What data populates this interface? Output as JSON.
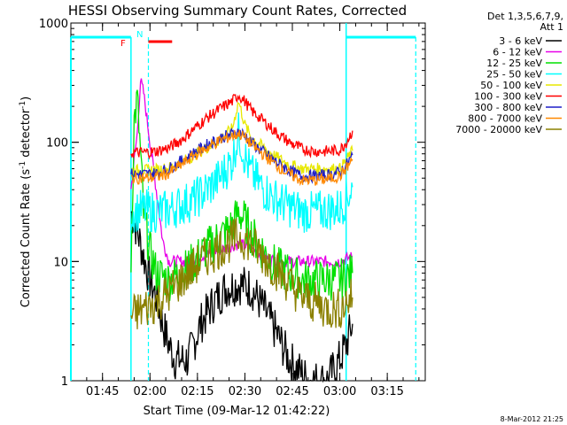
{
  "chart_data": {
    "type": "line",
    "title": "HESSI Observing Summary Count Rates, Corrected",
    "xlabel": "Start Time (09-Mar-12 01:42:22)",
    "ylabel_main": "Corrected Count Rate (s",
    "ylabel_sup1": "-1",
    "ylabel_mid": " detector",
    "ylabel_sup2": "-1",
    "ylabel_end": ")",
    "yscale": "log",
    "ylim": [
      1,
      1000
    ],
    "xlim_minutes": [
      -7,
      105
    ],
    "xticks": [
      {
        "t": 3,
        "label": "01:45"
      },
      {
        "t": 18,
        "label": "02:00"
      },
      {
        "t": 33,
        "label": "02:15"
      },
      {
        "t": 48,
        "label": "02:30"
      },
      {
        "t": 63,
        "label": "02:45"
      },
      {
        "t": 78,
        "label": "03:00"
      },
      {
        "t": 93,
        "label": "03:15"
      }
    ],
    "yticks": [
      {
        "v": 1,
        "label": "1"
      },
      {
        "v": 10,
        "label": "10"
      },
      {
        "v": 100,
        "label": "100"
      },
      {
        "v": 1000,
        "label": "1000"
      }
    ],
    "legend_header": [
      "Det 1,3,5,6,7,9,",
      "Att 1"
    ],
    "series": [
      {
        "name": "3 - 6 keV",
        "color": "#000000",
        "points": [
          [
            12,
            26
          ],
          [
            14,
            18
          ],
          [
            16,
            11
          ],
          [
            18,
            7
          ],
          [
            20,
            5
          ],
          [
            22,
            3
          ],
          [
            24,
            2
          ],
          [
            26,
            1.5
          ],
          [
            30,
            1.5
          ],
          [
            34,
            3
          ],
          [
            38,
            4.5
          ],
          [
            42,
            6
          ],
          [
            46,
            6.5
          ],
          [
            50,
            6
          ],
          [
            54,
            4
          ],
          [
            58,
            2.5
          ],
          [
            62,
            1.5
          ],
          [
            68,
            1
          ],
          [
            74,
            1
          ],
          [
            78,
            1.5
          ],
          [
            80,
            2
          ],
          [
            82,
            3
          ]
        ]
      },
      {
        "name": "6 - 12 keV",
        "color": "#e800e8",
        "points": [
          [
            12,
            40
          ],
          [
            14,
            120
          ],
          [
            15,
            330
          ],
          [
            16,
            260
          ],
          [
            18,
            100
          ],
          [
            20,
            40
          ],
          [
            22,
            15
          ],
          [
            24,
            10
          ],
          [
            26,
            10
          ],
          [
            30,
            10
          ],
          [
            34,
            11
          ],
          [
            38,
            12
          ],
          [
            42,
            13
          ],
          [
            46,
            14
          ],
          [
            50,
            13
          ],
          [
            54,
            11
          ],
          [
            58,
            10
          ],
          [
            62,
            10
          ],
          [
            66,
            10
          ],
          [
            70,
            10
          ],
          [
            74,
            10
          ],
          [
            78,
            10
          ],
          [
            82,
            11
          ]
        ]
      },
      {
        "name": "12 - 25 keV",
        "color": "#00e000",
        "points": [
          [
            12,
            10
          ],
          [
            13,
            150
          ],
          [
            14,
            230
          ],
          [
            15,
            80
          ],
          [
            16,
            25
          ],
          [
            18,
            12
          ],
          [
            20,
            8
          ],
          [
            24,
            7
          ],
          [
            28,
            8
          ],
          [
            32,
            10
          ],
          [
            36,
            13
          ],
          [
            40,
            16
          ],
          [
            44,
            20
          ],
          [
            46,
            26
          ],
          [
            48,
            22
          ],
          [
            50,
            17
          ],
          [
            54,
            12
          ],
          [
            58,
            9
          ],
          [
            62,
            8
          ],
          [
            66,
            7
          ],
          [
            70,
            7
          ],
          [
            74,
            7
          ],
          [
            78,
            7
          ],
          [
            82,
            8
          ]
        ]
      },
      {
        "name": "25 - 50 keV",
        "color": "#00ffff",
        "points": [
          [
            12,
            26
          ],
          [
            16,
            27
          ],
          [
            20,
            26
          ],
          [
            24,
            27
          ],
          [
            28,
            30
          ],
          [
            32,
            33
          ],
          [
            36,
            40
          ],
          [
            40,
            50
          ],
          [
            44,
            70
          ],
          [
            46,
            120
          ],
          [
            48,
            75
          ],
          [
            50,
            55
          ],
          [
            54,
            40
          ],
          [
            58,
            33
          ],
          [
            62,
            29
          ],
          [
            66,
            26
          ],
          [
            70,
            26
          ],
          [
            74,
            27
          ],
          [
            78,
            28
          ],
          [
            80,
            34
          ],
          [
            82,
            42
          ]
        ]
      },
      {
        "name": "50 - 100 keV",
        "color": "#e8e800",
        "points": [
          [
            12,
            58
          ],
          [
            16,
            58
          ],
          [
            20,
            59
          ],
          [
            24,
            61
          ],
          [
            28,
            68
          ],
          [
            32,
            78
          ],
          [
            36,
            90
          ],
          [
            40,
            105
          ],
          [
            44,
            130
          ],
          [
            46,
            220
          ],
          [
            48,
            140
          ],
          [
            50,
            110
          ],
          [
            54,
            90
          ],
          [
            58,
            75
          ],
          [
            62,
            65
          ],
          [
            66,
            60
          ],
          [
            70,
            60
          ],
          [
            74,
            60
          ],
          [
            78,
            60
          ],
          [
            80,
            70
          ],
          [
            82,
            85
          ]
        ]
      },
      {
        "name": "100 - 300 keV",
        "color": "#ff0000",
        "points": [
          [
            12,
            82
          ],
          [
            16,
            82
          ],
          [
            20,
            84
          ],
          [
            24,
            90
          ],
          [
            28,
            105
          ],
          [
            32,
            130
          ],
          [
            36,
            160
          ],
          [
            40,
            190
          ],
          [
            44,
            220
          ],
          [
            46,
            250
          ],
          [
            48,
            220
          ],
          [
            50,
            185
          ],
          [
            54,
            150
          ],
          [
            58,
            120
          ],
          [
            62,
            100
          ],
          [
            66,
            88
          ],
          [
            70,
            84
          ],
          [
            74,
            84
          ],
          [
            78,
            86
          ],
          [
            80,
            100
          ],
          [
            82,
            125
          ]
        ]
      },
      {
        "name": "300 - 800 keV",
        "color": "#1e1ec8",
        "points": [
          [
            12,
            54
          ],
          [
            16,
            54
          ],
          [
            20,
            55
          ],
          [
            24,
            60
          ],
          [
            28,
            70
          ],
          [
            32,
            82
          ],
          [
            36,
            95
          ],
          [
            40,
            108
          ],
          [
            44,
            118
          ],
          [
            46,
            122
          ],
          [
            48,
            115
          ],
          [
            50,
            100
          ],
          [
            54,
            82
          ],
          [
            58,
            68
          ],
          [
            62,
            58
          ],
          [
            66,
            52
          ],
          [
            70,
            52
          ],
          [
            74,
            53
          ],
          [
            78,
            56
          ],
          [
            80,
            64
          ],
          [
            82,
            78
          ]
        ]
      },
      {
        "name": "800 - 7000 keV",
        "color": "#ff8800",
        "points": [
          [
            12,
            50
          ],
          [
            16,
            50
          ],
          [
            20,
            51
          ],
          [
            24,
            55
          ],
          [
            28,
            65
          ],
          [
            32,
            78
          ],
          [
            36,
            90
          ],
          [
            40,
            103
          ],
          [
            44,
            113
          ],
          [
            46,
            118
          ],
          [
            48,
            110
          ],
          [
            50,
            96
          ],
          [
            54,
            78
          ],
          [
            58,
            64
          ],
          [
            62,
            54
          ],
          [
            66,
            48
          ],
          [
            70,
            48
          ],
          [
            74,
            49
          ],
          [
            78,
            52
          ],
          [
            80,
            60
          ],
          [
            82,
            72
          ]
        ]
      },
      {
        "name": "7000 - 20000 keV",
        "color": "#8b8000",
        "points": [
          [
            12,
            3.5
          ],
          [
            16,
            4
          ],
          [
            20,
            4.5
          ],
          [
            24,
            5.5
          ],
          [
            28,
            7
          ],
          [
            32,
            9
          ],
          [
            36,
            11
          ],
          [
            40,
            13
          ],
          [
            44,
            15
          ],
          [
            46,
            16
          ],
          [
            48,
            15.5
          ],
          [
            50,
            14
          ],
          [
            54,
            11
          ],
          [
            58,
            8.5
          ],
          [
            62,
            6.5
          ],
          [
            66,
            5
          ],
          [
            70,
            4.5
          ],
          [
            74,
            4
          ],
          [
            78,
            4
          ],
          [
            80,
            4.5
          ],
          [
            82,
            5
          ]
        ]
      }
    ],
    "annotations": {
      "flag_f": "F",
      "flag_n": "N",
      "timestamp": "8-Mar-2012 21:25"
    }
  }
}
